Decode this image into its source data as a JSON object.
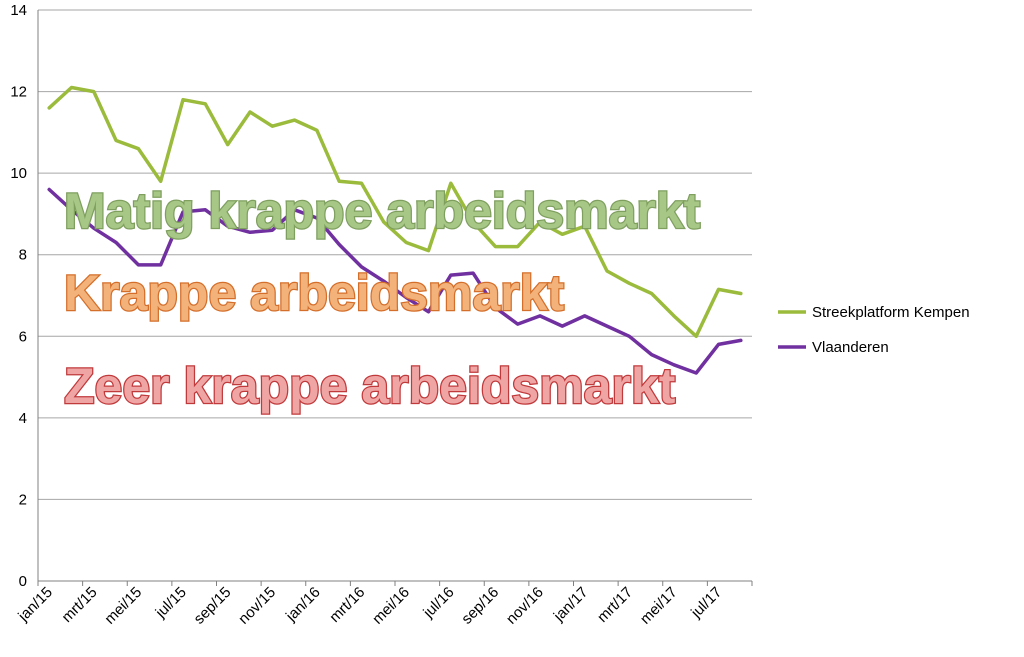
{
  "chart_data": {
    "type": "line",
    "ylim": [
      0,
      14
    ],
    "yticks": [
      0,
      2,
      4,
      6,
      8,
      10,
      12,
      14
    ],
    "x": [
      "jan/15",
      "feb/15",
      "mrt/15",
      "apr/15",
      "mei/15",
      "jun/15",
      "jul/15",
      "aug/15",
      "sep/15",
      "okt/15",
      "nov/15",
      "dec/15",
      "jan/16",
      "feb/16",
      "mrt/16",
      "apr/16",
      "mei/16",
      "jun/16",
      "jul/16",
      "aug/16",
      "sep/16",
      "okt/16",
      "nov/16",
      "dec/16",
      "jan/17",
      "feb/17",
      "mrt/17",
      "apr/17",
      "mei/17",
      "jun/17",
      "jul/17",
      "aug/17"
    ],
    "xtick_labels": [
      "jan/15",
      "mrt/15",
      "mei/15",
      "jul/15",
      "sep/15",
      "nov/15",
      "jan/16",
      "mrt/16",
      "mei/16",
      "jul/16",
      "sep/16",
      "nov/16",
      "jan/17",
      "mrt/17",
      "mei/17",
      "jul/17"
    ],
    "grid": true,
    "legend": "right",
    "series": [
      {
        "name": "Streekplatform Kempen",
        "color": "#9bbb3c",
        "values": [
          11.6,
          12.1,
          12.0,
          10.8,
          10.6,
          9.8,
          11.8,
          11.7,
          10.7,
          11.5,
          11.15,
          11.3,
          11.05,
          9.8,
          9.75,
          8.8,
          8.3,
          8.1,
          9.75,
          8.8,
          8.2,
          8.2,
          8.8,
          8.5,
          8.7,
          7.6,
          7.3,
          7.05,
          6.5,
          6.0,
          7.15,
          7.05
        ]
      },
      {
        "name": "Vlaanderen",
        "color": "#7030a0",
        "values": [
          9.6,
          9.1,
          8.65,
          8.3,
          7.75,
          7.75,
          9.05,
          9.1,
          8.7,
          8.55,
          8.6,
          9.1,
          8.9,
          8.25,
          7.7,
          7.35,
          6.95,
          6.6,
          7.5,
          7.55,
          6.7,
          6.3,
          6.5,
          6.25,
          6.5,
          6.25,
          6.0,
          5.55,
          5.3,
          5.1,
          5.8,
          5.9
        ]
      }
    ],
    "annotations": [
      {
        "text": "Matig krappe arbeidsmarkt",
        "fill": "#a6c786",
        "stroke": "#7f9f5f"
      },
      {
        "text": "Krappe arbeidsmarkt",
        "fill": "#f3b27a",
        "stroke": "#d46f2b"
      },
      {
        "text": "Zeer krappe arbeidsmarkt",
        "fill": "#f0a5a5",
        "stroke": "#c0393b"
      }
    ]
  }
}
